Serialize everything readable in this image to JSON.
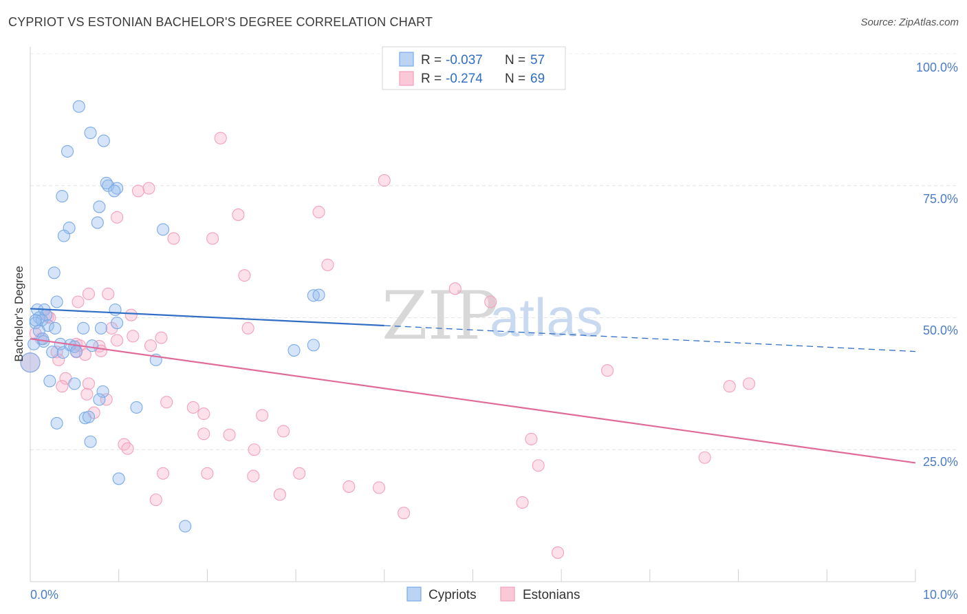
{
  "title": "CYPRIOT VS ESTONIAN BACHELOR'S DEGREE CORRELATION CHART",
  "source": "Source: ZipAtlas.com",
  "watermark": {
    "zip": "ZIP",
    "atlas": "atlas"
  },
  "colors": {
    "blue": "#7aaae8",
    "blue_line": "#2f6ec4",
    "pink": "#f4a0bb",
    "pink_line": "#e06a98",
    "tick": "#4a7cc7"
  },
  "legend": {
    "rows": [
      {
        "r_label": "R =",
        "r_value": "-0.037",
        "n_label": "N =",
        "n_value": "57"
      },
      {
        "r_label": "R =",
        "r_value": "-0.274",
        "n_label": "N =",
        "n_value": "69"
      }
    ]
  },
  "chart_data": {
    "type": "scatter",
    "title": "CYPRIOT VS ESTONIAN BACHELOR'S DEGREE CORRELATION CHART",
    "xlabel": "",
    "ylabel": "Bachelor's Degree",
    "xlim": [
      0,
      10
    ],
    "ylim": [
      0,
      100
    ],
    "x_tick_labels": [
      "0.0%",
      "10.0%"
    ],
    "y_tick_labels": [
      "100.0%",
      "75.0%",
      "50.0%",
      "25.0%"
    ],
    "y_tick_values": [
      100,
      75,
      50,
      25
    ],
    "grid": true,
    "legend_position": "bottom-center",
    "series": [
      {
        "name": "Cypriots",
        "r": -0.037,
        "n": 57,
        "trend": {
          "x0": 0,
          "y0": 51.7,
          "x1": 4.0,
          "y1": 48.5,
          "x_dash_end": 10.0,
          "y_dash_end": 43.6
        },
        "points": [
          [
            0.55,
            90.0
          ],
          [
            0.68,
            85.0
          ],
          [
            0.83,
            83.5
          ],
          [
            0.42,
            81.5
          ],
          [
            0.86,
            75.5
          ],
          [
            0.88,
            75.0
          ],
          [
            0.98,
            74.5
          ],
          [
            0.95,
            74.0
          ],
          [
            0.36,
            73.0
          ],
          [
            0.78,
            71.0
          ],
          [
            0.76,
            68.0
          ],
          [
            0.44,
            67.0
          ],
          [
            1.5,
            66.7
          ],
          [
            0.38,
            65.5
          ],
          [
            0.27,
            58.5
          ],
          [
            3.2,
            54.2
          ],
          [
            3.26,
            54.3
          ],
          [
            0.3,
            53.0
          ],
          [
            0.08,
            51.5
          ],
          [
            0.16,
            51.5
          ],
          [
            0.96,
            51.5
          ],
          [
            0.18,
            50.5
          ],
          [
            0.1,
            50.0
          ],
          [
            0.13,
            49.5
          ],
          [
            0.06,
            49.0
          ],
          [
            0.98,
            49.0
          ],
          [
            0.06,
            49.5
          ],
          [
            0.2,
            48.5
          ],
          [
            0.28,
            48.0
          ],
          [
            0.6,
            48.0
          ],
          [
            0.8,
            48.0
          ],
          [
            0.1,
            47.5
          ],
          [
            0.15,
            45.5
          ],
          [
            0.34,
            45.0
          ],
          [
            0.04,
            45.0
          ],
          [
            0.45,
            44.8
          ],
          [
            0.7,
            44.7
          ],
          [
            0.5,
            44.5
          ],
          [
            3.2,
            44.8
          ],
          [
            2.98,
            43.8
          ],
          [
            0.25,
            43.5
          ],
          [
            0.37,
            43.4
          ],
          [
            0.52,
            43.6
          ],
          [
            1.42,
            42.0
          ],
          [
            0.0,
            41.5
          ],
          [
            0.22,
            38.0
          ],
          [
            0.5,
            37.5
          ],
          [
            0.82,
            36.0
          ],
          [
            0.78,
            34.5
          ],
          [
            1.2,
            33.0
          ],
          [
            0.62,
            31.0
          ],
          [
            0.66,
            31.2
          ],
          [
            0.3,
            30.0
          ],
          [
            0.68,
            26.5
          ],
          [
            1.0,
            19.5
          ],
          [
            1.75,
            10.5
          ],
          [
            0.14,
            46.0
          ]
        ]
      },
      {
        "name": "Estonians",
        "r": -0.274,
        "n": 69,
        "trend": {
          "x0": 0,
          "y0": 46.0,
          "x1": 10.0,
          "y1": 22.5
        },
        "points": [
          [
            2.15,
            84.0
          ],
          [
            4.0,
            76.0
          ],
          [
            1.34,
            74.5
          ],
          [
            1.22,
            74.0
          ],
          [
            2.35,
            69.5
          ],
          [
            3.26,
            70.0
          ],
          [
            0.98,
            69.0
          ],
          [
            1.62,
            65.0
          ],
          [
            2.06,
            65.0
          ],
          [
            3.36,
            60.0
          ],
          [
            2.42,
            58.0
          ],
          [
            4.8,
            55.5
          ],
          [
            0.66,
            54.5
          ],
          [
            0.88,
            54.5
          ],
          [
            0.54,
            53.0
          ],
          [
            5.2,
            53.0
          ],
          [
            0.22,
            50.0
          ],
          [
            1.14,
            50.5
          ],
          [
            0.92,
            48.0
          ],
          [
            2.46,
            48.0
          ],
          [
            1.16,
            46.5
          ],
          [
            1.48,
            46.2
          ],
          [
            0.12,
            46.0
          ],
          [
            0.98,
            45.7
          ],
          [
            0.52,
            45.0
          ],
          [
            0.56,
            44.7
          ],
          [
            1.36,
            44.7
          ],
          [
            0.78,
            44.6
          ],
          [
            0.8,
            43.7
          ],
          [
            0.52,
            43.5
          ],
          [
            0.62,
            43.0
          ],
          [
            0.3,
            43.5
          ],
          [
            0.32,
            42.0
          ],
          [
            0.4,
            38.5
          ],
          [
            0.36,
            37.0
          ],
          [
            0.66,
            37.5
          ],
          [
            0.64,
            35.5
          ],
          [
            0.86,
            34.5
          ],
          [
            1.54,
            34.0
          ],
          [
            0.72,
            32.0
          ],
          [
            1.84,
            33.0
          ],
          [
            1.96,
            31.8
          ],
          [
            2.62,
            31.5
          ],
          [
            2.86,
            28.5
          ],
          [
            1.96,
            28.0
          ],
          [
            2.25,
            27.8
          ],
          [
            5.66,
            27.0
          ],
          [
            1.06,
            26.0
          ],
          [
            1.1,
            25.2
          ],
          [
            2.53,
            25.0
          ],
          [
            5.74,
            22.0
          ],
          [
            7.62,
            23.5
          ],
          [
            1.5,
            20.5
          ],
          [
            2.0,
            20.5
          ],
          [
            2.52,
            20.0
          ],
          [
            3.04,
            20.5
          ],
          [
            3.6,
            18.0
          ],
          [
            3.94,
            17.8
          ],
          [
            2.82,
            16.5
          ],
          [
            1.42,
            15.5
          ],
          [
            5.56,
            15.0
          ],
          [
            4.22,
            13.0
          ],
          [
            5.96,
            5.5
          ],
          [
            6.52,
            40.0
          ],
          [
            7.9,
            37.0
          ],
          [
            8.12,
            37.5
          ],
          [
            0.0,
            41.5
          ],
          [
            0.06,
            47.0
          ],
          [
            0.2,
            50.2
          ]
        ]
      }
    ]
  },
  "bottom_legend": {
    "cypriots": "Cypriots",
    "estonians": "Estonians"
  }
}
